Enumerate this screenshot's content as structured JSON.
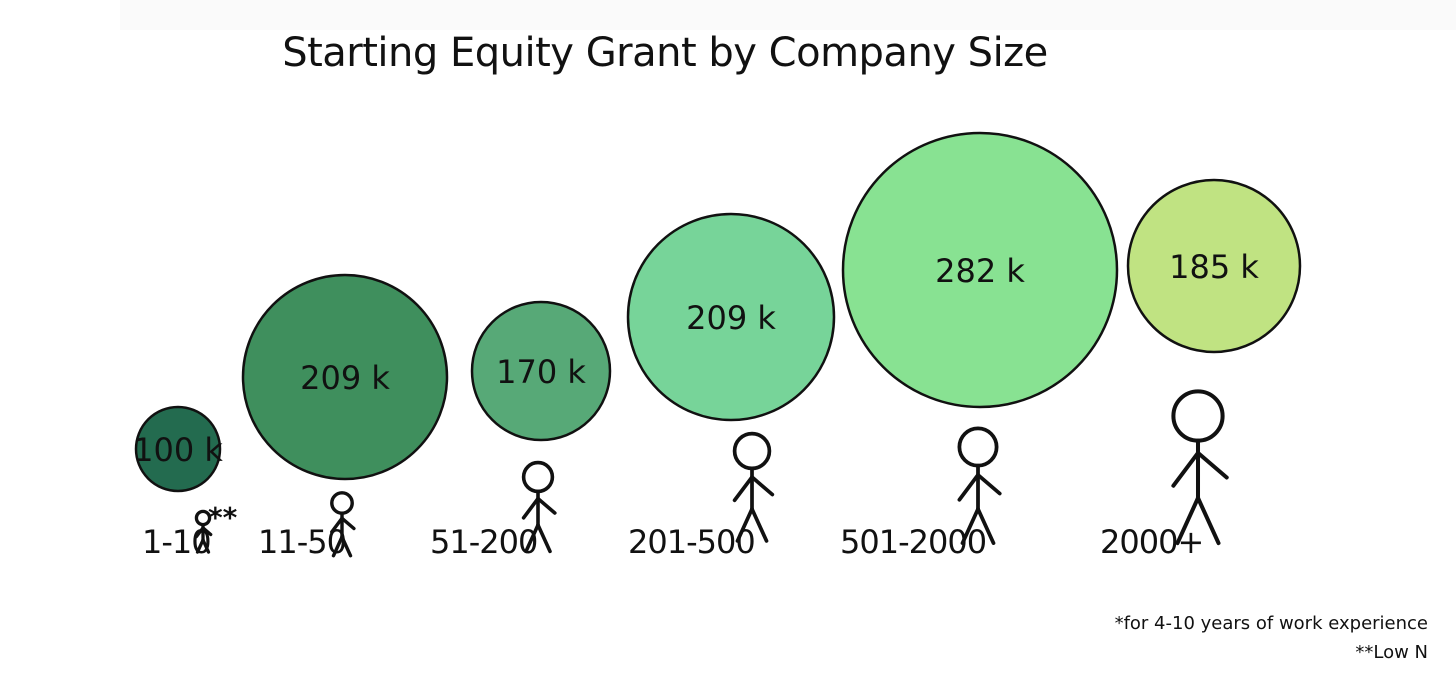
{
  "chart_data": {
    "type": "bubble",
    "title": "Starting Equity Grant by Company Size",
    "categories": [
      "1-10",
      "11-50",
      "51-200",
      "201-500",
      "501-2000",
      "2000+"
    ],
    "values": [
      100,
      209,
      170,
      209,
      282,
      185
    ],
    "value_labels": [
      "100 k",
      "209 k",
      "170 k",
      "209 k",
      "282 k",
      "185 k"
    ],
    "category_markers": [
      "**",
      "",
      "",
      "",
      "",
      ""
    ],
    "colors": [
      "#236b4f",
      "#3f8f5d",
      "#57a977",
      "#77d499",
      "#88e292",
      "#c0e382"
    ],
    "footnotes": [
      "*for 4-10 years of work experience",
      "**Low N"
    ]
  }
}
